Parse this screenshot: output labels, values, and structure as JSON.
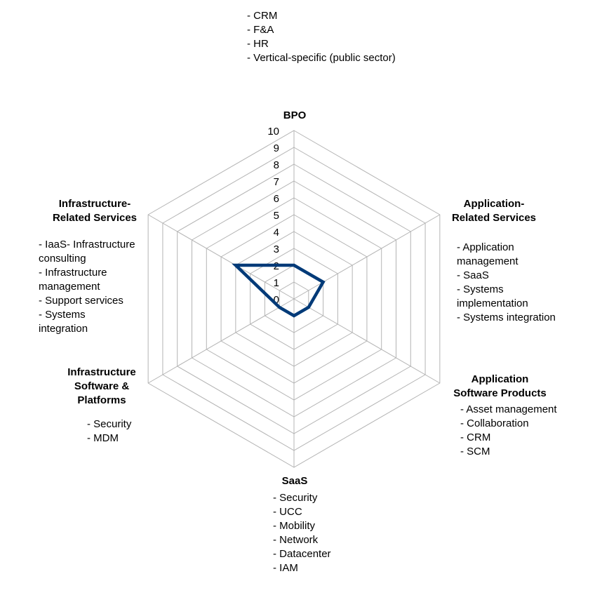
{
  "chart_data": {
    "type": "radar",
    "title": "",
    "axes": [
      {
        "label_lines": [
          "BPO"
        ],
        "items": [
          "- CRM",
          "- F&A",
          "- HR",
          "- Vertical-specific (public sector)"
        ]
      },
      {
        "label_lines": [
          "Application-",
          "Related Services"
        ],
        "items": [
          "- Application management",
          "- SaaS",
          "- Systems implementation",
          "- Systems integration"
        ]
      },
      {
        "label_lines": [
          "Application",
          "Software Products"
        ],
        "items": [
          "- Asset management",
          "- Collaboration",
          "- CRM",
          "- SCM"
        ]
      },
      {
        "label_lines": [
          "SaaS"
        ],
        "items": [
          "- Security",
          "- UCC",
          "- Mobility",
          "- Network",
          "- Datacenter",
          "- IAM"
        ]
      },
      {
        "label_lines": [
          "Infrastructure",
          "Software &",
          "Platforms"
        ],
        "items": [
          "- Security",
          "- MDM"
        ]
      },
      {
        "label_lines": [
          "Infrastructure-",
          "Related Services"
        ],
        "items": [
          "- IaaS- Infrastructure consulting",
          "- Infrastructure management",
          "- Support services",
          "- Systems integration"
        ]
      }
    ],
    "series": [
      {
        "values": [
          2,
          2,
          1,
          1,
          1,
          4
        ],
        "color": "#003a78"
      }
    ],
    "rlim": [
      0,
      10
    ],
    "r_ticks": [
      "0",
      "1",
      "2",
      "3",
      "4",
      "5",
      "6",
      "7",
      "8",
      "9",
      "10"
    ],
    "grid": true,
    "grid_color": "#b4b4b4"
  }
}
